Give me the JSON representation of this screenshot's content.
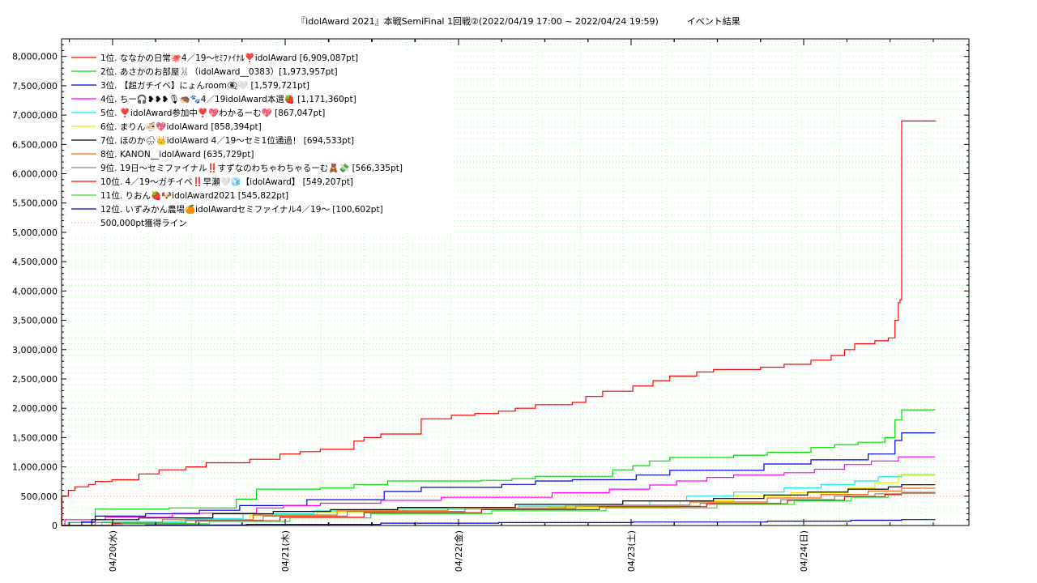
{
  "chart_data": {
    "type": "line",
    "title": "『idolAward 2021』本戦SemiFinal 1回戦②(2022/04/19 17:00 ~ 2022/04/24 19:59)          イベント結果",
    "xlabel": "",
    "ylabel": "",
    "x_start": "2022/04/19 17:00",
    "x_end": "2022/04/24 19:59",
    "x_ticks": [
      "04/20(水)",
      "04/21(木)",
      "04/22(金)",
      "04/23(土)",
      "04/24(日)"
    ],
    "ylim": [
      0,
      8300000
    ],
    "y_ticks": [
      0,
      500000,
      1000000,
      1500000,
      2000000,
      2500000,
      3000000,
      3500000,
      4000000,
      4500000,
      5000000,
      5500000,
      6000000,
      6500000,
      7000000,
      7500000,
      8000000
    ],
    "y_tick_labels": [
      "0",
      "500,000",
      "1,000,000",
      "1,500,000",
      "2,000,000",
      "2,500,000",
      "3,000,000",
      "3,500,000",
      "4,000,000",
      "4,500,000",
      "5,000,000",
      "5,500,000",
      "6,000,000",
      "6,500,000",
      "7,000,000",
      "7,500,000",
      "8,000,000"
    ],
    "grid": true,
    "legend_position": "top-left",
    "reference_line": {
      "name": "500,000pt獲得ライン",
      "value": 500000,
      "color": "#ff9999"
    },
    "series": [
      {
        "name": "1位. ななかの日常🐙4／19〜ｾﾐﾌｧｲﾅﾙ❣️idolAward [6,909,087pt]",
        "color": "#ff0000",
        "points": [
          [
            0,
            0
          ],
          [
            0.01,
            500000
          ],
          [
            0.2,
            600000
          ],
          [
            0.4,
            660000
          ],
          [
            0.8,
            700000
          ],
          [
            1.0,
            750000
          ],
          [
            1.5,
            780000
          ],
          [
            2.3,
            880000
          ],
          [
            2.9,
            950000
          ],
          [
            3.7,
            1000000
          ],
          [
            4.3,
            1070000
          ],
          [
            5.6,
            1130000
          ],
          [
            6.5,
            1220000
          ],
          [
            7.1,
            1260000
          ],
          [
            7.7,
            1300000
          ],
          [
            8.7,
            1440000
          ],
          [
            9.0,
            1500000
          ],
          [
            9.5,
            1560000
          ],
          [
            10.7,
            1820000
          ],
          [
            11.6,
            1880000
          ],
          [
            12.3,
            1910000
          ],
          [
            13.0,
            1950000
          ],
          [
            13.5,
            2000000
          ],
          [
            14.1,
            2060000
          ],
          [
            15.2,
            2100000
          ],
          [
            15.6,
            2200000
          ],
          [
            16.1,
            2290000
          ],
          [
            17.0,
            2380000
          ],
          [
            17.6,
            2470000
          ],
          [
            18.1,
            2550000
          ],
          [
            18.9,
            2620000
          ],
          [
            19.4,
            2660000
          ],
          [
            20.8,
            2700000
          ],
          [
            21.5,
            2750000
          ],
          [
            22.3,
            2820000
          ],
          [
            22.9,
            2900000
          ],
          [
            23.3,
            3000000
          ],
          [
            23.6,
            3100000
          ],
          [
            24.2,
            3150000
          ],
          [
            24.6,
            3200000
          ],
          [
            24.8,
            3500000
          ],
          [
            24.9,
            3800000
          ],
          [
            24.95,
            3850000
          ],
          [
            25.0,
            6900000
          ],
          [
            26.0,
            6909087
          ]
        ]
      },
      {
        "name": "2位. あさかのお部屋🐰（idolAward__0383）[1,973,957pt]",
        "color": "#00dd00",
        "points": [
          [
            0,
            0
          ],
          [
            0.2,
            50000
          ],
          [
            1.0,
            280000
          ],
          [
            3.2,
            300000
          ],
          [
            5.2,
            450000
          ],
          [
            5.8,
            620000
          ],
          [
            7.7,
            640000
          ],
          [
            8.7,
            700000
          ],
          [
            9.7,
            760000
          ],
          [
            12.5,
            770000
          ],
          [
            13.4,
            800000
          ],
          [
            14.1,
            840000
          ],
          [
            16.4,
            950000
          ],
          [
            17.0,
            1020000
          ],
          [
            17.5,
            1100000
          ],
          [
            18.1,
            1160000
          ],
          [
            20.0,
            1200000
          ],
          [
            21.0,
            1250000
          ],
          [
            22.3,
            1330000
          ],
          [
            23.0,
            1380000
          ],
          [
            23.7,
            1420000
          ],
          [
            24.5,
            1500000
          ],
          [
            24.8,
            1800000
          ],
          [
            25.0,
            1973957
          ],
          [
            26.0,
            1973957
          ]
        ]
      },
      {
        "name": "3位. 【超ガチイベ】にょんroom👁‍🗨🤍 [1,579,721pt]",
        "color": "#0000dd",
        "points": [
          [
            0,
            0
          ],
          [
            0.6,
            60000
          ],
          [
            1.0,
            160000
          ],
          [
            2.5,
            200000
          ],
          [
            4.1,
            260000
          ],
          [
            5.3,
            340000
          ],
          [
            7.3,
            440000
          ],
          [
            9.6,
            580000
          ],
          [
            10.7,
            650000
          ],
          [
            13.1,
            700000
          ],
          [
            14.1,
            760000
          ],
          [
            15.2,
            780000
          ],
          [
            17.1,
            860000
          ],
          [
            18.1,
            940000
          ],
          [
            20.9,
            1050000
          ],
          [
            22.3,
            1120000
          ],
          [
            24.0,
            1220000
          ],
          [
            24.8,
            1450000
          ],
          [
            25.0,
            1579721
          ],
          [
            26.0,
            1579721
          ]
        ]
      },
      {
        "name": "4位. ちー🎧❥❥❥🎙🦔🐾4／19idolAward本選🍓 [1,171,360pt]",
        "color": "#ff00ff",
        "points": [
          [
            0,
            0
          ],
          [
            0.1,
            100000
          ],
          [
            1.3,
            140000
          ],
          [
            3.3,
            210000
          ],
          [
            5.8,
            300000
          ],
          [
            6.6,
            340000
          ],
          [
            7.7,
            380000
          ],
          [
            9.5,
            430000
          ],
          [
            11.3,
            480000
          ],
          [
            14.6,
            560000
          ],
          [
            16.3,
            620000
          ],
          [
            17.5,
            690000
          ],
          [
            18.3,
            760000
          ],
          [
            19.2,
            820000
          ],
          [
            20.0,
            860000
          ],
          [
            21.5,
            900000
          ],
          [
            22.4,
            960000
          ],
          [
            23.3,
            1040000
          ],
          [
            24.1,
            1100000
          ],
          [
            24.9,
            1171360
          ],
          [
            26.0,
            1171360
          ]
        ]
      },
      {
        "name": "5位. ❣️idolAward参加中❣️💖わかるーむ💖 [867,047pt]",
        "color": "#00eeee",
        "points": [
          [
            0,
            0
          ],
          [
            1.2,
            60000
          ],
          [
            3.7,
            120000
          ],
          [
            5.4,
            200000
          ],
          [
            7.5,
            250000
          ],
          [
            10.0,
            290000
          ],
          [
            13.6,
            330000
          ],
          [
            17.5,
            420000
          ],
          [
            18.6,
            500000
          ],
          [
            20.0,
            570000
          ],
          [
            21.5,
            640000
          ],
          [
            22.6,
            700000
          ],
          [
            23.6,
            760000
          ],
          [
            24.3,
            830000
          ],
          [
            25.0,
            867047
          ],
          [
            26.0,
            867047
          ]
        ]
      },
      {
        "name": "6位. まりん🍜💖idolAward [858,394pt]",
        "color": "#eeee00",
        "points": [
          [
            0,
            0
          ],
          [
            1.4,
            40000
          ],
          [
            3.5,
            80000
          ],
          [
            5.6,
            170000
          ],
          [
            7.6,
            230000
          ],
          [
            10.0,
            270000
          ],
          [
            14.5,
            310000
          ],
          [
            18.4,
            420000
          ],
          [
            20.0,
            500000
          ],
          [
            21.7,
            560000
          ],
          [
            23.4,
            640000
          ],
          [
            24.2,
            730000
          ],
          [
            24.9,
            858394
          ],
          [
            26.0,
            858394
          ]
        ]
      },
      {
        "name": "7位. ほのか🌧👑idolAward 4／19〜セミ1位通過！ [694,533pt]",
        "color": "#000000",
        "points": [
          [
            0,
            0
          ],
          [
            0.9,
            100000
          ],
          [
            2.3,
            130000
          ],
          [
            4.5,
            200000
          ],
          [
            6.3,
            240000
          ],
          [
            8.0,
            270000
          ],
          [
            10.0,
            310000
          ],
          [
            13.5,
            360000
          ],
          [
            16.7,
            420000
          ],
          [
            19.4,
            460000
          ],
          [
            20.9,
            520000
          ],
          [
            22.2,
            570000
          ],
          [
            23.4,
            620000
          ],
          [
            24.6,
            660000
          ],
          [
            25.0,
            694533
          ],
          [
            26.0,
            694533
          ]
        ]
      },
      {
        "name": "8位. KANON__idolAward [635,729pt]",
        "color": "#ff6600",
        "points": [
          [
            0,
            0
          ],
          [
            1.0,
            50000
          ],
          [
            3.0,
            100000
          ],
          [
            5.7,
            180000
          ],
          [
            8.2,
            250000
          ],
          [
            11.5,
            300000
          ],
          [
            15.0,
            350000
          ],
          [
            18.7,
            400000
          ],
          [
            21.0,
            470000
          ],
          [
            22.6,
            530000
          ],
          [
            24.0,
            590000
          ],
          [
            25.0,
            635729
          ],
          [
            26.0,
            635729
          ]
        ]
      },
      {
        "name": "9位. 19日〜セミファイナル‼️すずなのわちゃわちゃるーむ🧸💸 [566,335pt]",
        "color": "#888888",
        "points": [
          [
            0,
            0
          ],
          [
            1.6,
            40000
          ],
          [
            3.7,
            90000
          ],
          [
            6.0,
            160000
          ],
          [
            8.5,
            240000
          ],
          [
            12.0,
            290000
          ],
          [
            15.3,
            330000
          ],
          [
            19.0,
            380000
          ],
          [
            21.4,
            440000
          ],
          [
            23.0,
            500000
          ],
          [
            24.2,
            540000
          ],
          [
            25.0,
            566335
          ],
          [
            26.0,
            566335
          ]
        ]
      },
      {
        "name": "10位. 4／19〜ガチイベ‼️早瀬🤍🧊【idolAward】 [549,207pt]",
        "color": "#ff0000",
        "points": [
          [
            0,
            0
          ],
          [
            1.5,
            30000
          ],
          [
            4.0,
            80000
          ],
          [
            6.5,
            140000
          ],
          [
            9.0,
            220000
          ],
          [
            12.5,
            270000
          ],
          [
            16.0,
            320000
          ],
          [
            19.2,
            370000
          ],
          [
            21.6,
            430000
          ],
          [
            23.3,
            490000
          ],
          [
            24.5,
            530000
          ],
          [
            25.0,
            549207
          ],
          [
            26.0,
            549207
          ]
        ]
      },
      {
        "name": "11位. りおん🍓🐶idolAward2021 [545,822pt]",
        "color": "#33dd33",
        "points": [
          [
            0,
            0
          ],
          [
            1.8,
            30000
          ],
          [
            4.4,
            70000
          ],
          [
            6.8,
            130000
          ],
          [
            9.2,
            200000
          ],
          [
            12.8,
            250000
          ],
          [
            16.2,
            300000
          ],
          [
            19.5,
            360000
          ],
          [
            21.8,
            420000
          ],
          [
            23.5,
            480000
          ],
          [
            24.6,
            520000
          ],
          [
            25.0,
            545822
          ],
          [
            26.0,
            545822
          ]
        ]
      },
      {
        "name": "12位. いずみかん農場🍊idolAwardセミファイナル4／19〜 [100,602pt]",
        "color": "#0000cc",
        "points": [
          [
            0,
            0
          ],
          [
            2.5,
            10000
          ],
          [
            5.5,
            20000
          ],
          [
            9.5,
            40000
          ],
          [
            13.0,
            50000
          ],
          [
            17.0,
            60000
          ],
          [
            21.0,
            75000
          ],
          [
            23.5,
            90000
          ],
          [
            25.0,
            100602
          ],
          [
            26.0,
            100602
          ]
        ]
      }
    ]
  }
}
